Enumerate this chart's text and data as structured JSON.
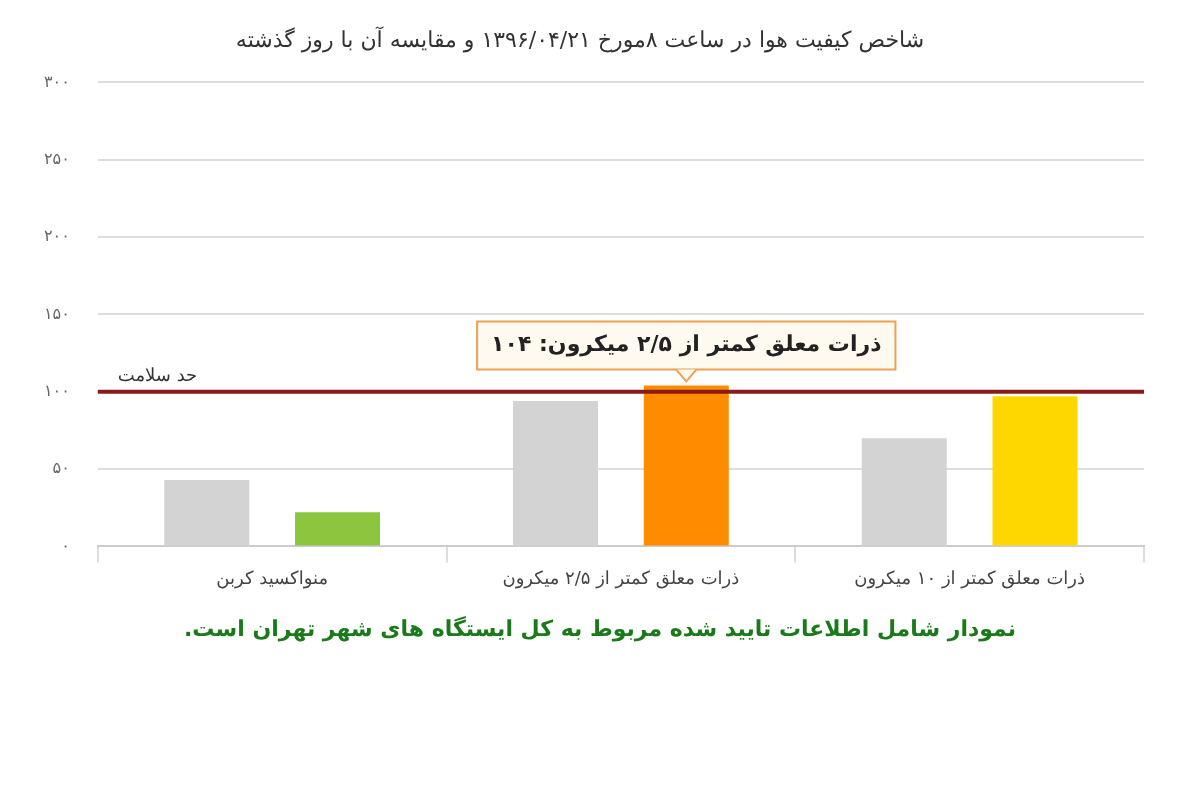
{
  "chart_data": {
    "type": "bar",
    "title": "شاخص کیفیت هوا در ساعت ۸مورخ ۱۳۹۶/۰۴/۲۱ و مقایسه آن با روز گذشته",
    "categories": [
      "منواکسید کربن",
      "ذرات معلق کمتر از ۲/۵ میکرون",
      "ذرات معلق کمتر از ۱۰ میکرون"
    ],
    "series": [
      {
        "color": "#d3d3d3",
        "values": [
          43,
          94,
          70
        ]
      },
      {
        "colors": [
          "#8cc63f",
          "#ff8c00",
          "#ffd700"
        ],
        "values": [
          22,
          104,
          97
        ]
      }
    ],
    "ylim": [
      0,
      300
    ],
    "yticks": [
      {
        "value": 0,
        "label": "۰"
      },
      {
        "value": 50,
        "label": "۵۰"
      },
      {
        "value": 100,
        "label": "۱۰۰"
      },
      {
        "value": 150,
        "label": "۱۵۰"
      },
      {
        "value": 200,
        "label": "۲۰۰"
      },
      {
        "value": 250,
        "label": "۲۵۰"
      },
      {
        "value": 300,
        "label": "۳۰۰"
      }
    ],
    "grid": "y",
    "legend": false,
    "ref_lines": [
      {
        "axis": "y",
        "value": 100,
        "label": "حد سلامت",
        "color": "#8b1a1a"
      }
    ],
    "annotations": [
      {
        "text": "ذرات معلق کمتر از ۲/۵ میکرون: ۱۰۴",
        "x": "ذرات معلق کمتر از ۲/۵ میکرون",
        "y": 104
      },
      "نمودار شامل اطلاعات تایید شده مربوط به کل ایستگاه های شهر تهران است."
    ]
  }
}
